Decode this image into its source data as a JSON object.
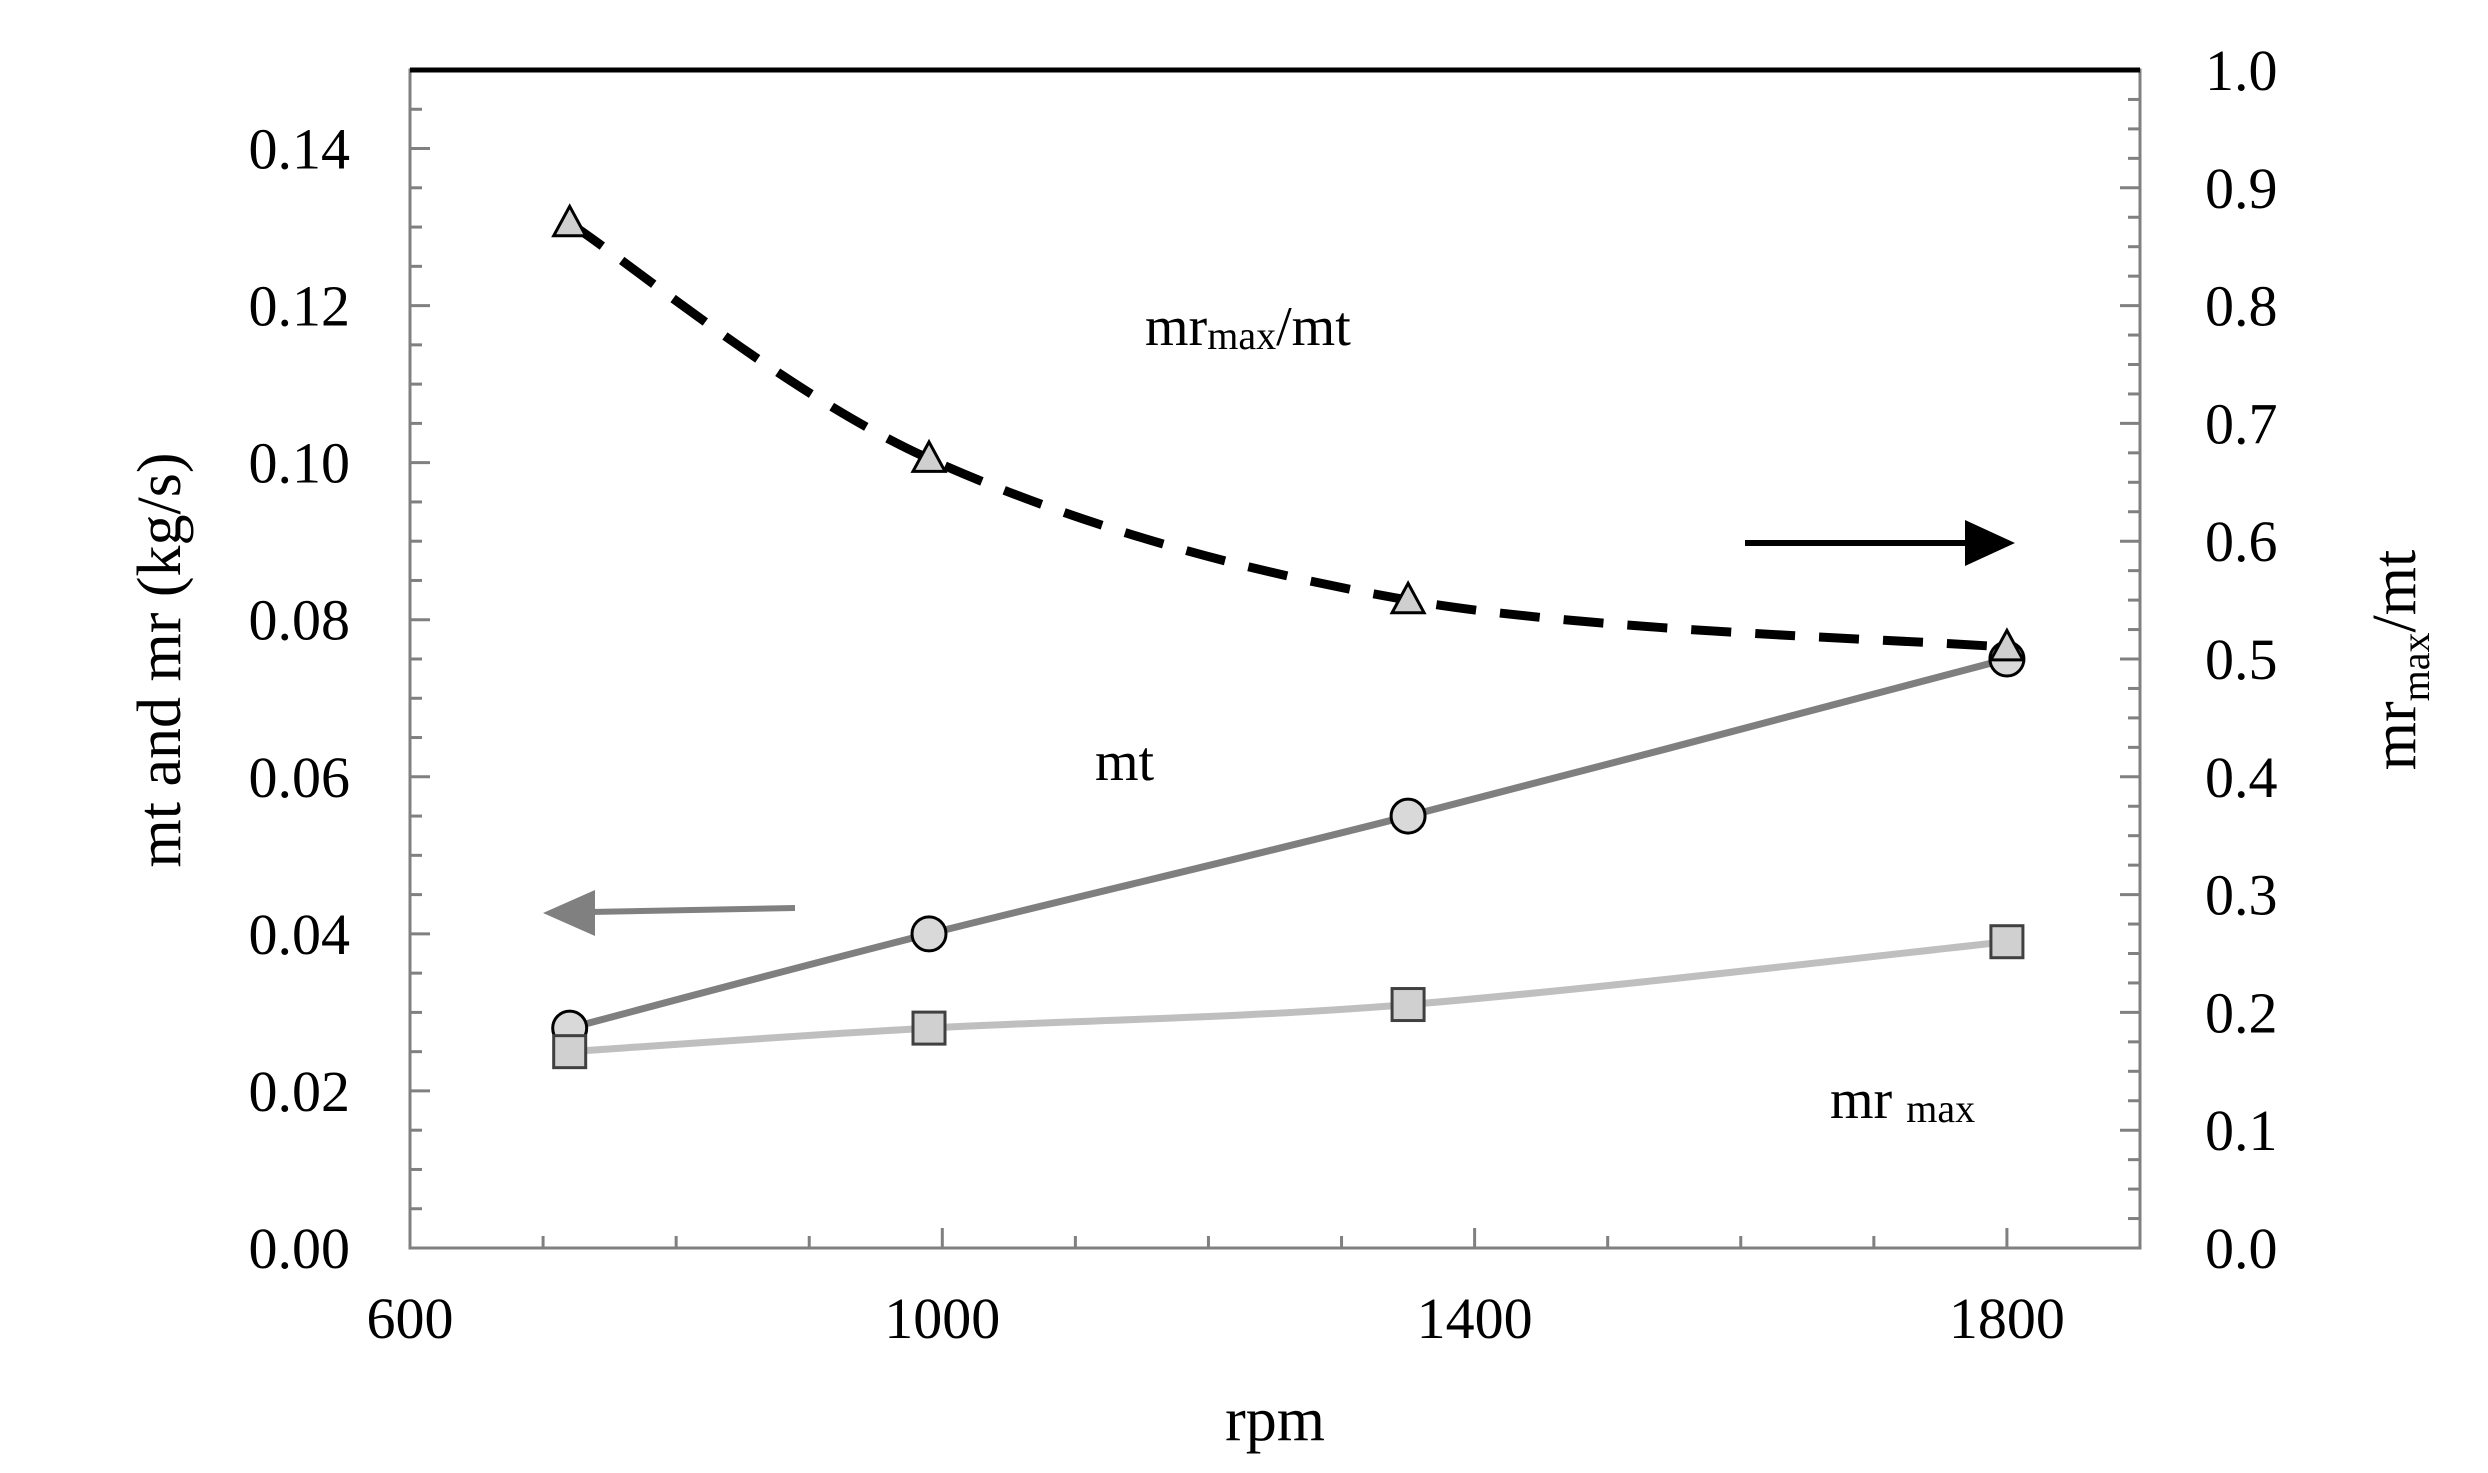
{
  "chart_data": {
    "type": "line",
    "xlabel": "rpm",
    "ylabel_left": "mt and mr (kg/s)",
    "ylabel_right": {
      "main": "mr",
      "sub": "max",
      "tail": "/mt"
    },
    "x": [
      720,
      990,
      1350,
      1800
    ],
    "xlim": [
      600,
      1900
    ],
    "ylim_left": [
      0.0,
      0.15
    ],
    "ylim_right": [
      0.0,
      1.0
    ],
    "x_ticks": [
      "600",
      "1000",
      "1400",
      "1800"
    ],
    "x_tick_values": [
      600,
      1000,
      1400,
      1800
    ],
    "y_left_ticks": [
      "0.00",
      "0.02",
      "0.04",
      "0.06",
      "0.08",
      "0.10",
      "0.12",
      "0.14"
    ],
    "y_left_tick_values": [
      0.0,
      0.02,
      0.04,
      0.06,
      0.08,
      0.1,
      0.12,
      0.14
    ],
    "y_right_ticks": [
      "0.0",
      "0.1",
      "0.2",
      "0.3",
      "0.4",
      "0.5",
      "0.6",
      "0.7",
      "0.8",
      "0.9",
      "1.0"
    ],
    "y_right_tick_values": [
      0.0,
      0.1,
      0.2,
      0.3,
      0.4,
      0.5,
      0.6,
      0.7,
      0.8,
      0.9,
      1.0
    ],
    "series": [
      {
        "name": "mt",
        "axis": "left",
        "marker": "circle",
        "line": "solid",
        "color": "#7f7f7f",
        "values": [
          0.028,
          0.04,
          0.055,
          0.075
        ]
      },
      {
        "name": "mr max",
        "axis": "left",
        "marker": "square",
        "line": "solid",
        "color": "#bfbfbf",
        "values": [
          0.025,
          0.028,
          0.031,
          0.039
        ]
      },
      {
        "name": "mr max/mt",
        "axis": "right",
        "marker": "triangle",
        "line": "dashed",
        "color": "#000000",
        "values": [
          0.87,
          0.67,
          0.55,
          0.51
        ]
      }
    ],
    "annotations": {
      "ratio": {
        "main": "mr",
        "sub": "max",
        "tail": "/mt"
      },
      "mt": "mt",
      "mrmax": {
        "main": "mr ",
        "sub": "max"
      }
    }
  }
}
